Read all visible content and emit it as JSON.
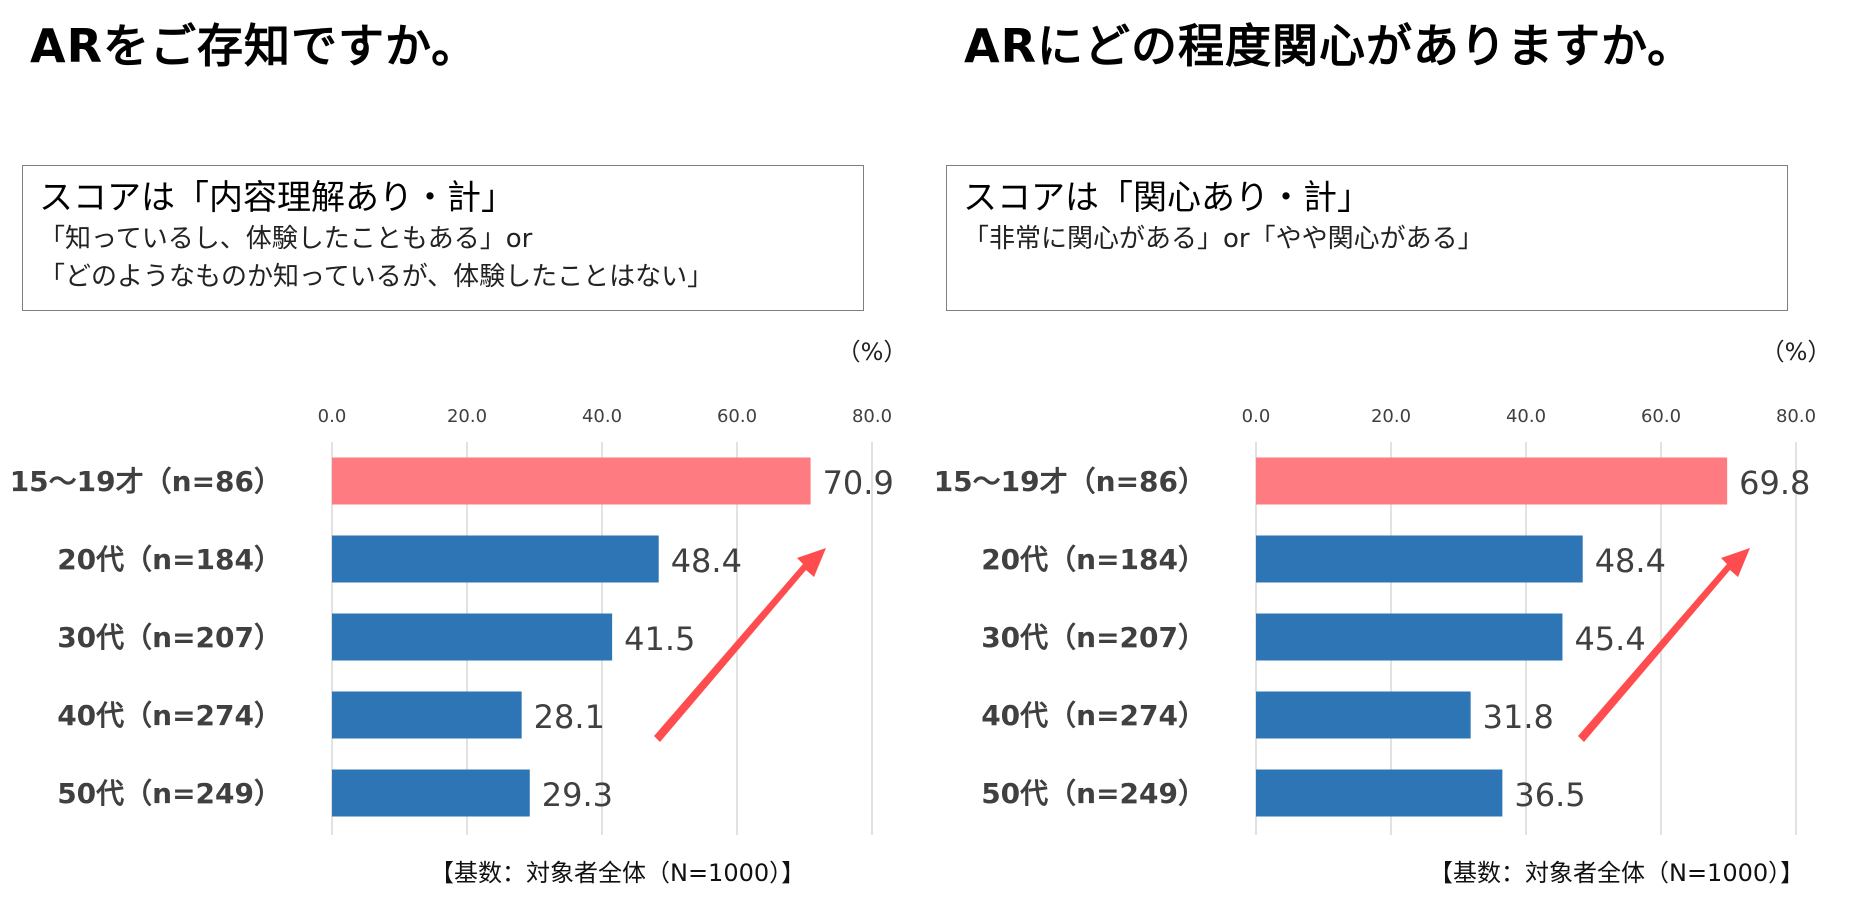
{
  "colors": {
    "highlight": "#ff7b82",
    "bar": "#2e75b6",
    "arrow": "#ff4d4f",
    "grid": "#d9d9d9",
    "label": "#404040"
  },
  "chart_data": [
    {
      "type": "bar",
      "title": "ARをご存知ですか。",
      "score_box": {
        "title": "スコアは「内容理解あり・計」",
        "lines": [
          "「知っているし、体験したこともある」or",
          "「どのようなものか知っているが、体験したことはない」"
        ]
      },
      "unit": "（%）",
      "categories": [
        "15～19才（n=86）",
        "20代（n=184）",
        "30代（n=207）",
        "40代（n=274）",
        "50代（n=249）"
      ],
      "values": [
        70.9,
        48.4,
        41.5,
        28.1,
        29.3
      ],
      "value_labels": [
        "70.9",
        "48.4",
        "41.5",
        "28.1",
        "29.3"
      ],
      "xlim": [
        0,
        80
      ],
      "xticks": [
        "0.0",
        "20.0",
        "40.0",
        "60.0",
        "80.0"
      ],
      "highlight_index": 0,
      "grid": true,
      "note": "【基数：対象者全体（N=1000）】"
    },
    {
      "type": "bar",
      "title": "ARにどの程度関心がありますか。",
      "score_box": {
        "title": "スコアは「関心あり・計」",
        "lines": [
          "「非常に関心がある」or「やや関心がある」"
        ]
      },
      "unit": "（%）",
      "categories": [
        "15～19才（n=86）",
        "20代（n=184）",
        "30代（n=207）",
        "40代（n=274）",
        "50代（n=249）"
      ],
      "values": [
        69.8,
        48.4,
        45.4,
        31.8,
        36.5
      ],
      "value_labels": [
        "69.8",
        "48.4",
        "45.4",
        "31.8",
        "36.5"
      ],
      "xlim": [
        0,
        80
      ],
      "xticks": [
        "0.0",
        "20.0",
        "40.0",
        "60.0",
        "80.0"
      ],
      "highlight_index": 0,
      "grid": true,
      "note": "【基数：対象者全体（N=1000）】"
    }
  ]
}
